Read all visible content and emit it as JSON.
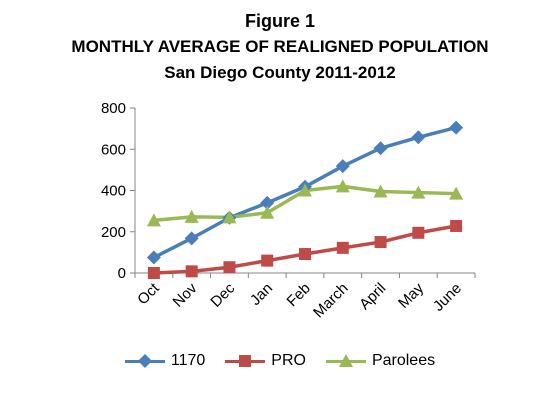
{
  "chart_data": {
    "type": "line",
    "title": "Figure 1",
    "subtitle": "MONTHLY AVERAGE OF REALIGNED POPULATION",
    "subtitle2": "San Diego County 2011-2012",
    "categories": [
      "Oct",
      "Nov",
      "Dec",
      "Jan",
      "Feb",
      "March",
      "April",
      "May",
      "June"
    ],
    "ylim": [
      0,
      800
    ],
    "yticks": [
      "0",
      "200",
      "400",
      "600",
      "800"
    ],
    "grid": false,
    "legend_position": "bottom",
    "series": [
      {
        "name": "1170",
        "values": [
          75,
          168,
          268,
          340,
          418,
          518,
          605,
          658,
          705
        ],
        "color": "#4a7ebb",
        "marker": "diamond"
      },
      {
        "name": "PRO",
        "values": [
          0,
          8,
          28,
          60,
          92,
          122,
          150,
          195,
          228
        ],
        "color": "#be4b48",
        "marker": "square"
      },
      {
        "name": "Parolees",
        "values": [
          255,
          272,
          270,
          292,
          400,
          420,
          395,
          390,
          385
        ],
        "color": "#98b954",
        "marker": "triangle"
      }
    ]
  }
}
